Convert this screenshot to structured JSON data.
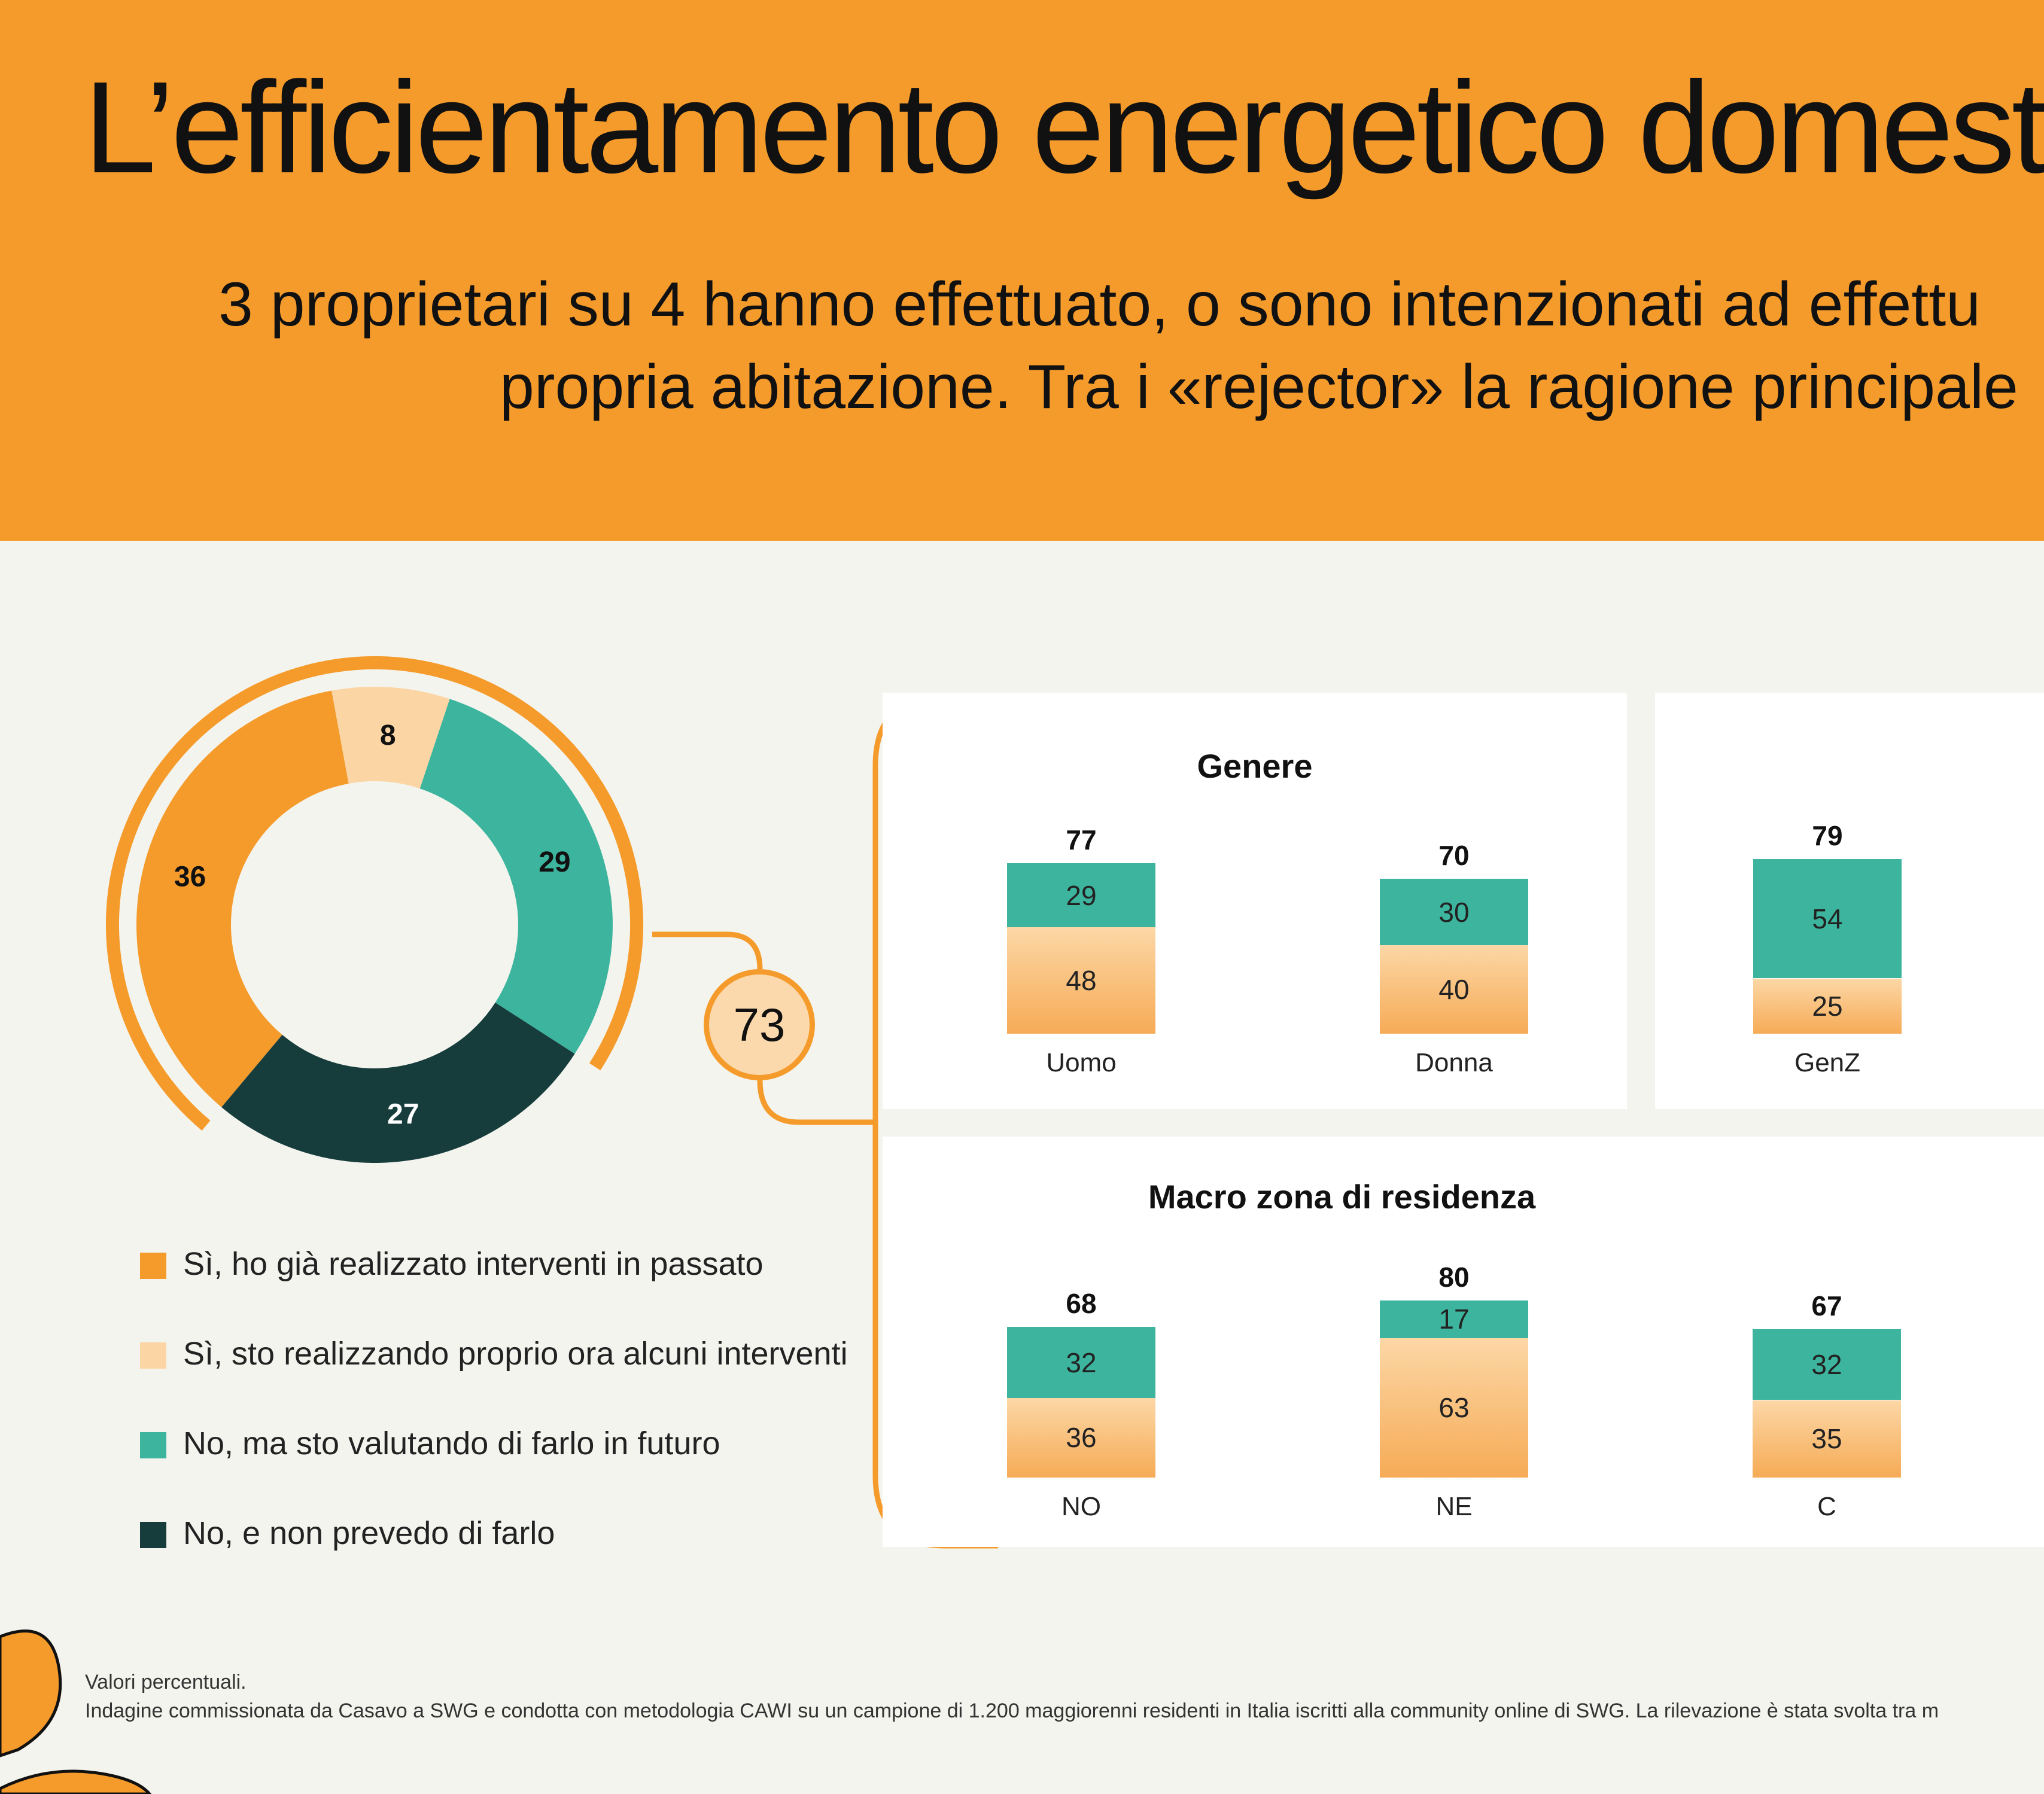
{
  "header": {
    "title": "L’efficientamento energetico domestico",
    "subtitle_line1": "3 proprietari su 4 hanno effettuato, o sono intenzionati ad effettu",
    "subtitle_line2": "propria abitazione. Tra i «rejector» la ragione principale"
  },
  "colors": {
    "orange": "#f59b2b",
    "peach": "#fbd5a4",
    "teal": "#3db59e",
    "dark_green": "#163c3c",
    "background": "#f4f4ee"
  },
  "total_badge": "73",
  "legend": [
    {
      "label": "Sì, ho già realizzato interventi in passato",
      "color": "#f59b2b"
    },
    {
      "label": "Sì, sto realizzando proprio ora alcuni interventi",
      "color": "#fbd5a4"
    },
    {
      "label": "No, ma sto valutando di farlo in futuro",
      "color": "#3db59e"
    },
    {
      "label": "No, e non prevedo di farlo",
      "color": "#163c3c"
    }
  ],
  "chart_data": [
    {
      "type": "pie",
      "variant": "donut",
      "labels": [
        "Sì, ho già realizzato interventi in passato",
        "Sì, sto realizzando proprio ora alcuni interventi",
        "No, ma sto valutando di farlo in futuro",
        "No, e non prevedo di farlo"
      ],
      "values": [
        36,
        8,
        29,
        27
      ],
      "highlight_total": 73
    },
    {
      "type": "bar",
      "stacked": true,
      "title": "Genere",
      "categories": [
        "Uomo",
        "Donna"
      ],
      "totals": [
        77,
        70
      ],
      "series": [
        {
          "name": "No, ma sto valutando di farlo in futuro",
          "values": [
            29,
            30
          ]
        },
        {
          "name": "Sì, ho già realizzato interventi in passato / Sì, sto realizzando proprio ora alcuni interventi",
          "values": [
            48,
            40
          ]
        }
      ]
    },
    {
      "type": "bar",
      "stacked": true,
      "title": "",
      "categories": [
        "GenZ"
      ],
      "totals": [
        79
      ],
      "series": [
        {
          "name": "No, ma sto valutando di farlo in futuro",
          "values": [
            54
          ]
        },
        {
          "name": "Sì, ho già realizzato interventi in passato / Sì, sto realizzando proprio ora alcuni interventi",
          "values": [
            25
          ]
        }
      ]
    },
    {
      "type": "bar",
      "stacked": true,
      "title": "Macro zona di residenza",
      "categories": [
        "NO",
        "NE",
        "C"
      ],
      "totals": [
        68,
        80,
        67
      ],
      "series": [
        {
          "name": "No, ma sto valutando di farlo in futuro",
          "values": [
            32,
            17,
            32
          ]
        },
        {
          "name": "Sì, ho già realizzato interventi in passato / Sì, sto realizzando proprio ora alcuni interventi",
          "values": [
            36,
            63,
            35
          ]
        }
      ]
    }
  ],
  "footnote": {
    "line1": "Valori percentuali.",
    "line2": "Indagine commissionata da Casavo a SWG e condotta con metodologia CAWI su un campione di 1.200 maggiorenni residenti in Italia iscritti alla community online di SWG. La rilevazione è stata svolta tra m"
  }
}
